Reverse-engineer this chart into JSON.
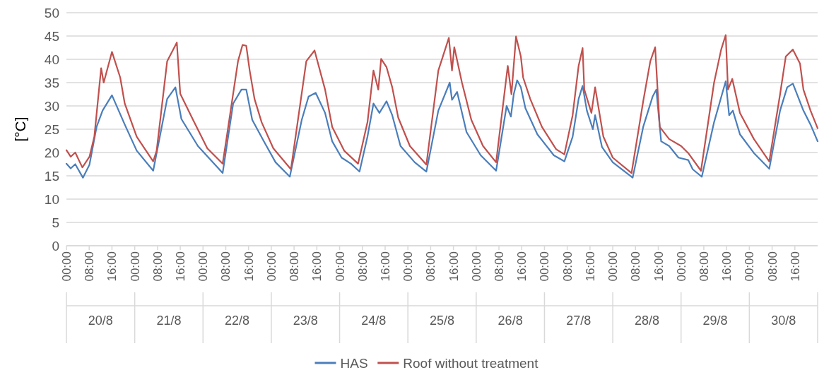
{
  "chart_data": {
    "type": "line",
    "ylabel": "[°C]",
    "xlim": [
      "--08-20T00:00",
      "--08-31T00:00"
    ],
    "ylim": [
      0,
      50
    ],
    "yticks": [
      0,
      5,
      10,
      15,
      20,
      25,
      30,
      35,
      40,
      45,
      50
    ],
    "xticks": [
      {
        "value": "--08-20T00:00",
        "label": "00:00"
      },
      {
        "value": "--08-20T08:00",
        "label": "08:00"
      },
      {
        "value": "--08-20T16:00",
        "label": "16:00"
      },
      {
        "value": "--08-21T00:00",
        "label": "00:00"
      },
      {
        "value": "--08-21T08:00",
        "label": "08:00"
      },
      {
        "value": "--08-21T16:00",
        "label": "16:00"
      },
      {
        "value": "--08-22T00:00",
        "label": "00:00"
      },
      {
        "value": "--08-22T08:00",
        "label": "08:00"
      },
      {
        "value": "--08-22T16:00",
        "label": "16:00"
      },
      {
        "value": "--08-23T00:00",
        "label": "00:00"
      },
      {
        "value": "--08-23T08:00",
        "label": "08:00"
      },
      {
        "value": "--08-23T16:00",
        "label": "16:00"
      },
      {
        "value": "--08-24T00:00",
        "label": "00:00"
      },
      {
        "value": "--08-24T08:00",
        "label": "08:00"
      },
      {
        "value": "--08-24T16:00",
        "label": "16:00"
      },
      {
        "value": "--08-25T00:00",
        "label": "00:00"
      },
      {
        "value": "--08-25T08:00",
        "label": "08:00"
      },
      {
        "value": "--08-25T16:00",
        "label": "16:00"
      },
      {
        "value": "--08-26T00:00",
        "label": "00:00"
      },
      {
        "value": "--08-26T08:00",
        "label": "08:00"
      },
      {
        "value": "--08-26T16:00",
        "label": "16:00"
      },
      {
        "value": "--08-27T00:00",
        "label": "00:00"
      },
      {
        "value": "--08-27T08:00",
        "label": "08:00"
      },
      {
        "value": "--08-27T16:00",
        "label": "16:00"
      },
      {
        "value": "--08-28T00:00",
        "label": "00:00"
      },
      {
        "value": "--08-28T08:00",
        "label": "08:00"
      },
      {
        "value": "--08-28T16:00",
        "label": "16:00"
      },
      {
        "value": "--08-29T00:00",
        "label": "00:00"
      },
      {
        "value": "--08-29T08:00",
        "label": "08:00"
      },
      {
        "value": "--08-29T16:00",
        "label": "16:00"
      },
      {
        "value": "--08-30T00:00",
        "label": "00:00"
      },
      {
        "value": "--08-30T08:00",
        "label": "08:00"
      },
      {
        "value": "--08-30T16:00",
        "label": "16:00"
      }
    ],
    "annotations": [
      "20/8",
      "21/8",
      "22/8",
      "23/8",
      "24/8",
      "25/8",
      "26/8",
      "27/8",
      "28/8",
      "29/8",
      "30/8"
    ],
    "grid": "y",
    "legend": "bottom",
    "marker": "none",
    "line_style": "solid",
    "series": [
      {
        "name": "HAS",
        "color": "#4a7ebb",
        "x": [
          "--08-20T00:00",
          "--08-20T01:30",
          "--08-20T03:06",
          "--08-20T05:48",
          "--08-20T08:06",
          "--08-20T10:36",
          "--08-20T12:42",
          "--08-20T16:00",
          "--08-20T20:30",
          "--08-21T00:42",
          "--08-21T06:30",
          "--08-21T11:24",
          "--08-21T14:18",
          "--08-21T16:24",
          "--08-21T22:12",
          "--08-22T06:54",
          "--08-22T10:36",
          "--08-22T13:30",
          "--08-22T15:12",
          "--08-22T17:18",
          "--08-22T21:24",
          "--08-23T01:30",
          "--08-23T06:30",
          "--08-23T10:42",
          "--08-23T13:06",
          "--08-23T15:36",
          "--08-23T18:54",
          "--08-23T21:24",
          "--08-24T00:42",
          "--08-24T04:00",
          "--08-24T07:00",
          "--08-24T09:48",
          "--08-24T11:54",
          "--08-24T14:00",
          "--08-24T16:30",
          "--08-24T18:30",
          "--08-24T21:24",
          "--08-25T02:24",
          "--08-25T06:30",
          "--08-25T10:42",
          "--08-25T14:42",
          "--08-25T15:30",
          "--08-25T17:18",
          "--08-25T20:36",
          "--08-26T01:36",
          "--08-26T07:00",
          "--08-26T10:42",
          "--08-26T12:12",
          "--08-26T13:12",
          "--08-26T14:24",
          "--08-26T15:42",
          "--08-26T17:18",
          "--08-26T21:30",
          "--08-27T03:18",
          "--08-27T07:00",
          "--08-27T09:54",
          "--08-27T12:00",
          "--08-27T13:24",
          "--08-27T14:54",
          "--08-27T17:00",
          "--08-27T17:48",
          "--08-27T20:12",
          "--08-28T00:00",
          "--08-28T07:00",
          "--08-28T10:42",
          "--08-28T14:00",
          "--08-28T15:18",
          "--08-28T17:00",
          "--08-28T19:48",
          "--08-28T23:06",
          "--08-29T02:30",
          "--08-29T04:06",
          "--08-29T07:18",
          "--08-29T11:36",
          "--08-29T15:42",
          "--08-29T16:54",
          "--08-29T18:12",
          "--08-29T20:42",
          "--08-30T01:36",
          "--08-30T07:00",
          "--08-30T10:48",
          "--08-30T13:18",
          "--08-30T15:18",
          "--08-30T17:24",
          "--08-30T19:00",
          "--08-30T21:30",
          "--08-31T00:00"
        ],
        "values": [
          17.6,
          16.6,
          17.5,
          14.6,
          17.4,
          25.5,
          29,
          32.3,
          26,
          20.4,
          16.1,
          31.5,
          34,
          27.2,
          21.4,
          15.6,
          30.5,
          33.5,
          33.5,
          27,
          22.4,
          17.9,
          14.8,
          27,
          32,
          32.8,
          28.5,
          22.4,
          18.9,
          17.6,
          15.9,
          23.4,
          30.5,
          28.5,
          31,
          28,
          21.4,
          17.9,
          15.9,
          29,
          35,
          31.3,
          33,
          24.4,
          19.4,
          16.1,
          30,
          27.7,
          32.5,
          35.5,
          34,
          29.5,
          23.9,
          19.4,
          18.1,
          23.4,
          31.5,
          34.3,
          29,
          25,
          28,
          21.2,
          17.9,
          14.6,
          25.5,
          32,
          33.5,
          22.4,
          21.4,
          18.9,
          18.4,
          16.4,
          14.8,
          26.5,
          35.3,
          28,
          29,
          23.9,
          19.9,
          16.5,
          29,
          34,
          34.8,
          31.5,
          29,
          26,
          22.4
        ]
      },
      {
        "name": "Roof without treatment",
        "color": "#c0504d",
        "x": [
          "--08-20T00:00",
          "--08-20T01:30",
          "--08-20T03:06",
          "--08-20T05:36",
          "--08-20T08:06",
          "--08-20T09:48",
          "--08-20T12:12",
          "--08-20T13:06",
          "--08-20T16:00",
          "--08-20T18:54",
          "--08-20T20:30",
          "--08-21T00:42",
          "--08-21T06:30",
          "--08-21T07:42",
          "--08-21T11:24",
          "--08-21T14:48",
          "--08-21T16:00",
          "--08-21T20:30",
          "--08-22T01:30",
          "--08-22T06:54",
          "--08-22T08:06",
          "--08-22T12:18",
          "--08-22T13:54",
          "--08-22T15:12",
          "--08-22T16:24",
          "--08-22T18:06",
          "--08-22T20:36",
          "--08-23T00:42",
          "--08-23T06:54",
          "--08-23T12:18",
          "--08-23T15:12",
          "--08-23T18:54",
          "--08-23T21:24",
          "--08-24T01:36",
          "--08-24T06:30",
          "--08-24T09:48",
          "--08-24T11:54",
          "--08-24T13:36",
          "--08-24T14:36",
          "--08-24T16:30",
          "--08-24T18:30",
          "--08-24T20:36",
          "--08-25T00:42",
          "--08-25T06:30",
          "--08-25T10:42",
          "--08-25T14:24",
          "--08-25T15:30",
          "--08-25T16:18",
          "--08-25T19:00",
          "--08-25T22:18",
          "--08-26T02:24",
          "--08-26T07:00",
          "--08-26T11:06",
          "--08-26T12:24",
          "--08-26T14:00",
          "--08-26T15:42",
          "--08-26T16:30",
          "--08-26T19:00",
          "--08-26T23:06",
          "--08-27T04:06",
          "--08-27T07:00",
          "--08-27T09:54",
          "--08-27T12:00",
          "--08-27T13:24",
          "--08-27T14:00",
          "--08-27T16:30",
          "--08-27T17:48",
          "--08-27T20:42",
          "--08-28T00:00",
          "--08-28T06:36",
          "--08-28T10:42",
          "--08-28T13:12",
          "--08-28T14:54",
          "--08-28T16:30",
          "--08-28T19:48",
          "--08-29T00:00",
          "--08-29T02:30",
          "--08-29T07:00",
          "--08-29T11:36",
          "--08-29T14:06",
          "--08-29T15:42",
          "--08-29T16:30",
          "--08-29T18:00",
          "--08-29T20:42",
          "--08-30T01:36",
          "--08-30T07:00",
          "--08-30T10:48",
          "--08-30T12:48",
          "--08-30T15:18",
          "--08-30T17:48",
          "--08-30T19:00",
          "--08-30T21:30",
          "--08-31T00:00"
        ],
        "values": [
          20.5,
          19.1,
          20,
          16.8,
          19.1,
          23.4,
          38.1,
          35,
          41.6,
          36.1,
          30.5,
          23.4,
          18.1,
          20.4,
          39.6,
          43.6,
          32.6,
          27,
          20.9,
          17.6,
          22.4,
          39.6,
          43.1,
          42.9,
          37.6,
          31.5,
          26.5,
          20.9,
          16.4,
          39.6,
          41.9,
          33.5,
          25.5,
          20.4,
          17.6,
          26.5,
          37.6,
          33.5,
          40.1,
          38.3,
          34,
          27.5,
          21.4,
          17.4,
          37.6,
          44.6,
          37.6,
          42.6,
          35,
          27,
          21.4,
          17.9,
          38.6,
          32.5,
          44.9,
          40.6,
          36.1,
          31.5,
          25.5,
          20.7,
          19.6,
          28,
          38.6,
          42.4,
          33.5,
          28.5,
          34,
          23.4,
          18.9,
          15.6,
          31,
          39.6,
          42.6,
          25.5,
          22.9,
          21.4,
          19.9,
          16.1,
          35,
          42.1,
          45.2,
          33.5,
          35.8,
          28.5,
          22.9,
          18.1,
          32.5,
          40.6,
          42.1,
          39.1,
          33.5,
          29,
          25.2
        ]
      }
    ]
  }
}
